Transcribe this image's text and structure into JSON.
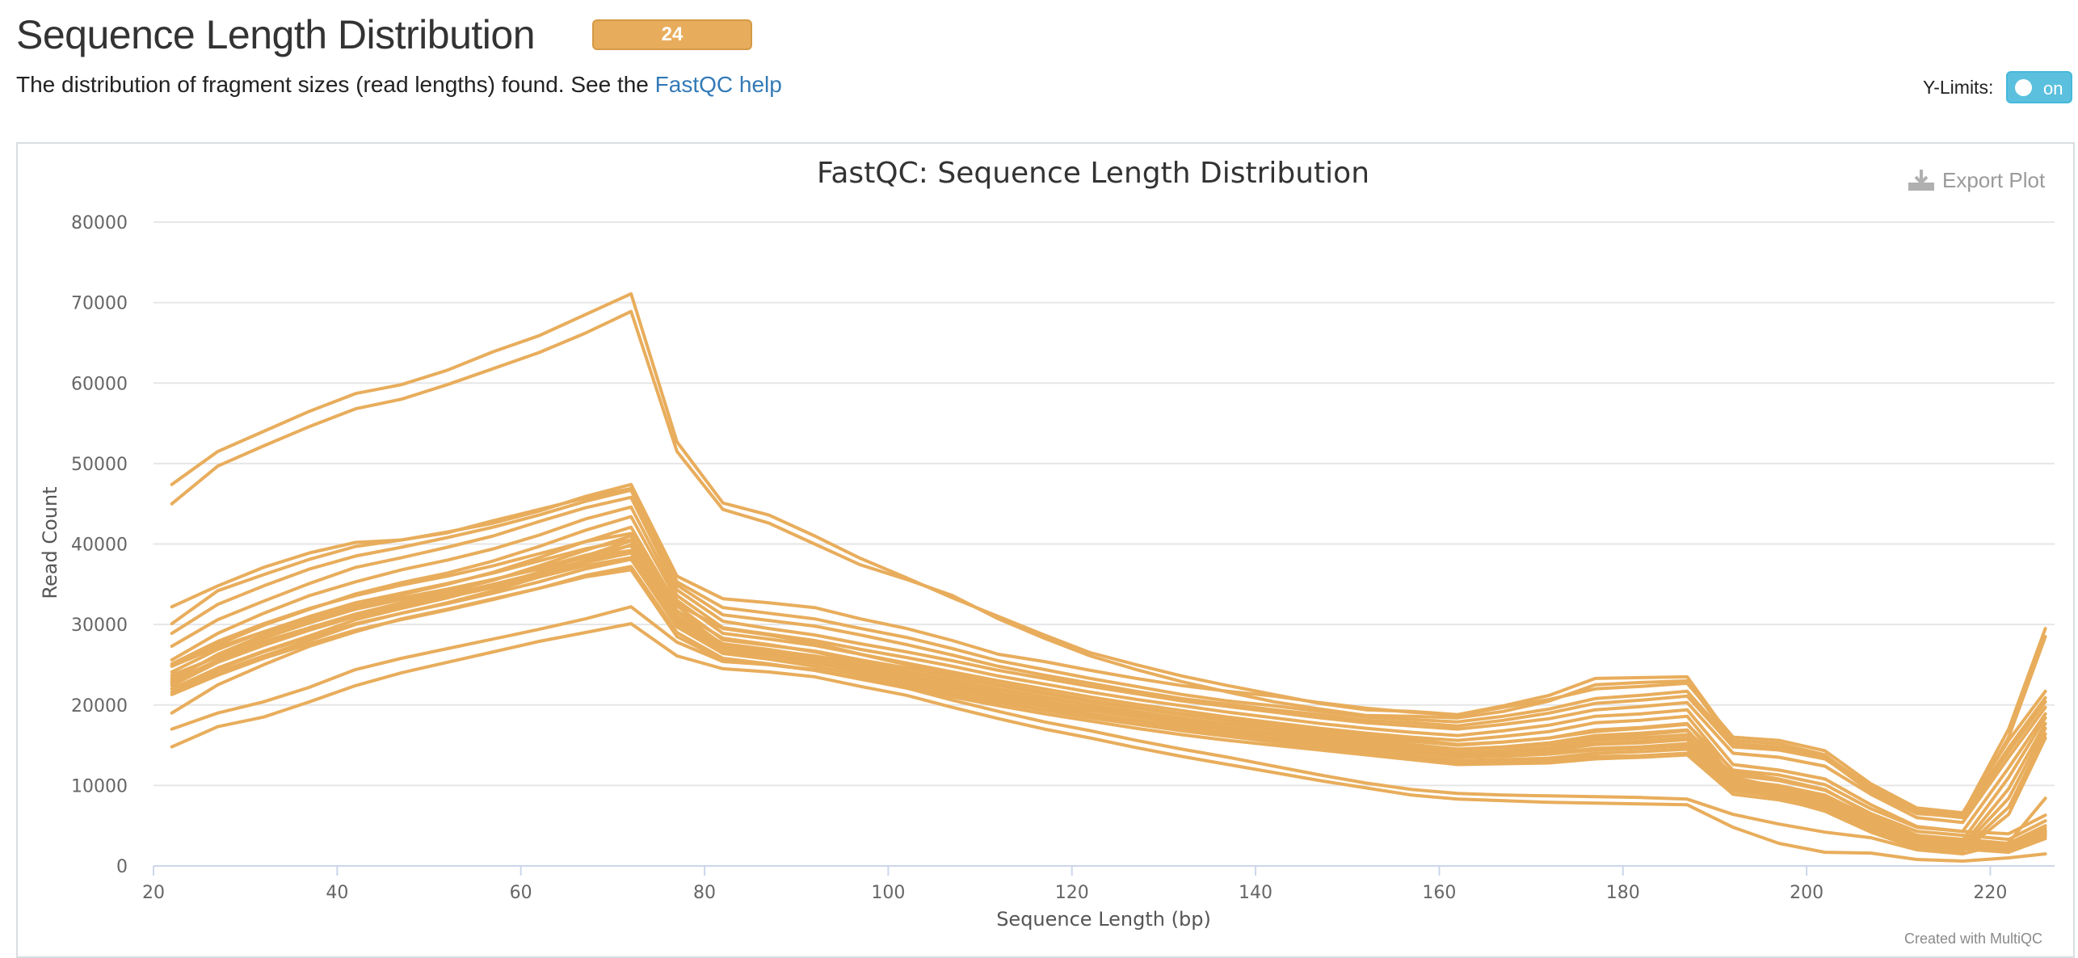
{
  "header": {
    "title": "Sequence Length Distribution",
    "badge": "24",
    "description_prefix": "The distribution of fragment sizes (read lengths) found. See the ",
    "help_link": "FastQC help",
    "ylimits_label": "Y-Limits:",
    "ylimits_toggle": "on"
  },
  "export_label": "Export Plot",
  "credits": "Created with MultiQC",
  "colors": {
    "series": "#e8ad5c",
    "badge": "#e8ad5c",
    "toggle": "#5bc0de",
    "link": "#337ab7"
  },
  "chart_data": {
    "type": "line",
    "title": "FastQC: Sequence Length Distribution",
    "xlabel": "Sequence Length (bp)",
    "ylabel": "Read Count",
    "xlim": [
      20,
      227
    ],
    "ylim": [
      0,
      80000
    ],
    "xticks": [
      20,
      40,
      60,
      80,
      100,
      120,
      140,
      160,
      180,
      200,
      220
    ],
    "yticks": [
      0,
      10000,
      20000,
      30000,
      40000,
      50000,
      60000,
      70000,
      80000
    ],
    "grid": true,
    "legend": "none",
    "x": [
      22,
      27,
      32,
      37,
      42,
      47,
      52,
      57,
      62,
      67,
      72,
      77,
      82,
      87,
      92,
      97,
      102,
      107,
      112,
      117,
      122,
      127,
      132,
      137,
      142,
      147,
      152,
      157,
      162,
      167,
      172,
      177,
      182,
      187,
      192,
      197,
      202,
      207,
      212,
      217,
      222,
      226
    ],
    "series": [
      {
        "values": [
          47400,
          51500,
          54000,
          56500,
          58700,
          59800,
          61600,
          63900,
          65900,
          68500,
          71100,
          52700,
          45100,
          43600,
          41000,
          38200,
          35800,
          33300,
          31000,
          28700,
          26500,
          25000,
          23600,
          22400,
          21300,
          20200,
          19400,
          19200,
          18800,
          19900,
          21200,
          23300,
          23400,
          23500,
          15600,
          15200,
          13800,
          9500,
          6800,
          6400,
          17000,
          29500
        ]
      },
      {
        "values": [
          45000,
          49700,
          52200,
          54600,
          56800,
          58000,
          59800,
          61800,
          63800,
          66200,
          68900,
          51500,
          44300,
          42600,
          40000,
          37400,
          35600,
          33600,
          30700,
          28300,
          26100,
          24400,
          22900,
          21600,
          20400,
          19500,
          18700,
          18600,
          18400,
          19200,
          20500,
          22500,
          22800,
          23000,
          15200,
          14700,
          13400,
          9200,
          6500,
          6100,
          16000,
          28500
        ]
      },
      {
        "values": [
          32200,
          34800,
          37100,
          38900,
          40200,
          40500,
          41500,
          42600,
          44100,
          45900,
          47400,
          36000,
          33200,
          32700,
          32100,
          30700,
          29500,
          28000,
          26300,
          25400,
          24300,
          23300,
          22400,
          21700,
          21100,
          20300,
          19600,
          19100,
          18700,
          19700,
          20700,
          22000,
          22300,
          22700,
          16000,
          15600,
          14300,
          10200,
          7200,
          6600,
          15600,
          21700
        ]
      },
      {
        "values": [
          30100,
          34200,
          36200,
          38100,
          39700,
          40500,
          41400,
          42900,
          44300,
          45700,
          46900,
          35300,
          32100,
          31400,
          30700,
          29500,
          28400,
          27000,
          25500,
          24400,
          23300,
          22300,
          21300,
          20500,
          19900,
          19200,
          18500,
          18200,
          17900,
          18600,
          19500,
          20800,
          21200,
          21700,
          15200,
          14800,
          13700,
          9800,
          6800,
          6200,
          14700,
          20900
        ]
      },
      {
        "values": [
          28900,
          32500,
          34800,
          36900,
          38500,
          39600,
          40800,
          42100,
          43600,
          45300,
          46700,
          34900,
          31200,
          30500,
          29800,
          28700,
          27500,
          26200,
          24800,
          23700,
          22700,
          21700,
          20800,
          20100,
          19400,
          18800,
          18100,
          17800,
          17400,
          18100,
          19000,
          20200,
          20600,
          21100,
          14800,
          14400,
          13300,
          9500,
          6600,
          6000,
          14200,
          20400
        ]
      },
      {
        "values": [
          27300,
          30600,
          32900,
          35100,
          37100,
          38300,
          39600,
          41000,
          42800,
          44500,
          45800,
          34300,
          30400,
          29500,
          28700,
          27600,
          26600,
          25500,
          24300,
          23300,
          22300,
          21400,
          20500,
          19800,
          19100,
          18400,
          17800,
          17400,
          17000,
          17600,
          18300,
          19400,
          19800,
          20300,
          14000,
          13500,
          12400,
          8900,
          6000,
          5400,
          13500,
          19700
        ]
      },
      {
        "values": [
          25600,
          28900,
          31400,
          33600,
          35300,
          36800,
          38000,
          39400,
          41100,
          43100,
          44600,
          33600,
          29600,
          28800,
          28000,
          26900,
          25900,
          24800,
          23600,
          22600,
          21600,
          20700,
          19900,
          19100,
          18400,
          17700,
          17100,
          16600,
          16200,
          16800,
          17500,
          18600,
          18900,
          19400,
          12600,
          11900,
          10800,
          7600,
          4900,
          4300,
          12200,
          18900
        ]
      },
      {
        "values": [
          24900,
          27500,
          29900,
          31900,
          33800,
          35200,
          36400,
          37900,
          39700,
          41700,
          43400,
          33000,
          28900,
          28200,
          27400,
          26300,
          25200,
          24100,
          23000,
          22000,
          21000,
          20100,
          19300,
          18500,
          17800,
          17100,
          16500,
          16000,
          15600,
          16100,
          16700,
          17800,
          18100,
          18600,
          11700,
          10800,
          9500,
          6300,
          3800,
          3200,
          11000,
          18400
        ]
      },
      {
        "values": [
          23100,
          26300,
          28700,
          30600,
          32300,
          33700,
          35000,
          36500,
          38300,
          40300,
          42100,
          32300,
          28100,
          27400,
          26700,
          25600,
          24600,
          23500,
          22400,
          21400,
          20400,
          19600,
          18800,
          18000,
          17300,
          16600,
          16000,
          15500,
          15000,
          15400,
          15900,
          16900,
          17200,
          17700,
          11000,
          9800,
          8400,
          5400,
          3000,
          2600,
          9600,
          17700
        ]
      },
      {
        "values": [
          22400,
          25300,
          27500,
          29400,
          31300,
          32700,
          34000,
          35500,
          37300,
          39200,
          41000,
          31600,
          27500,
          26800,
          26100,
          25100,
          24100,
          23000,
          21900,
          20900,
          20000,
          19200,
          18400,
          17600,
          16900,
          16200,
          15600,
          15000,
          14500,
          14800,
          15300,
          16200,
          16500,
          16900,
          10500,
          9300,
          7700,
          4900,
          2700,
          2300,
          8400,
          17100
        ]
      },
      {
        "values": [
          22000,
          24600,
          26700,
          28600,
          30600,
          32000,
          33300,
          34800,
          36500,
          38500,
          40400,
          31100,
          27100,
          26400,
          25700,
          24700,
          23700,
          22600,
          21500,
          20500,
          19600,
          18800,
          18000,
          17200,
          16500,
          15800,
          15200,
          14600,
          14100,
          14300,
          14700,
          15600,
          15900,
          16300,
          10100,
          8800,
          7200,
          4500,
          2400,
          2000,
          7300,
          16400
        ]
      },
      {
        "values": [
          21600,
          24100,
          26100,
          28000,
          30000,
          31400,
          32700,
          34200,
          35900,
          37900,
          39900,
          30700,
          26800,
          26100,
          25400,
          24400,
          23400,
          22300,
          21200,
          20200,
          19300,
          18500,
          17700,
          16900,
          16200,
          15500,
          14900,
          14300,
          13800,
          13900,
          14300,
          15100,
          15300,
          15700,
          9700,
          8400,
          6800,
          4200,
          2200,
          1800,
          6400,
          15900
        ]
      },
      {
        "values": [
          25100,
          27900,
          30100,
          32000,
          33600,
          34900,
          36000,
          37300,
          38800,
          40300,
          41300,
          32500,
          29500,
          28700,
          27700,
          26300,
          25000,
          23800,
          22600,
          21600,
          20600,
          19700,
          18900,
          18200,
          17600,
          16900,
          16300,
          15700,
          15100,
          15400,
          15900,
          16700,
          17100,
          17600,
          11900,
          11300,
          10100,
          7100,
          4800,
          4300,
          4000,
          6300
        ]
      },
      {
        "values": [
          24100,
          26900,
          29100,
          31000,
          32700,
          33900,
          35100,
          36400,
          37900,
          39400,
          40500,
          31700,
          28300,
          27500,
          26600,
          25300,
          24200,
          23100,
          22000,
          21000,
          20000,
          19100,
          18300,
          17600,
          17000,
          16300,
          15700,
          15100,
          14500,
          14700,
          15100,
          15900,
          16300,
          16800,
          11300,
          10600,
          9400,
          6500,
          4300,
          3800,
          3300,
          5600
        ]
      },
      {
        "values": [
          23400,
          26100,
          28300,
          30200,
          31900,
          33100,
          34300,
          35600,
          37000,
          38600,
          39800,
          31000,
          27600,
          26900,
          26000,
          24800,
          23700,
          22600,
          21500,
          20500,
          19500,
          18600,
          17800,
          17100,
          16500,
          15900,
          15300,
          14700,
          14100,
          14200,
          14500,
          15200,
          15500,
          15900,
          10700,
          10000,
          8800,
          6000,
          3800,
          3300,
          2800,
          5000
        ]
      },
      {
        "values": [
          22700,
          25300,
          27400,
          29300,
          31000,
          32200,
          33400,
          34700,
          36100,
          37700,
          38900,
          30300,
          27000,
          26300,
          25400,
          24200,
          23100,
          22000,
          20900,
          19900,
          18900,
          18100,
          17300,
          16600,
          16000,
          15400,
          14800,
          14200,
          13600,
          13700,
          14000,
          14600,
          14800,
          15200,
          10100,
          9400,
          8200,
          5500,
          3400,
          2900,
          2400,
          4400
        ]
      },
      {
        "values": [
          22000,
          24500,
          26600,
          28400,
          30100,
          31400,
          32600,
          33900,
          35300,
          36900,
          38100,
          29700,
          26400,
          25700,
          24800,
          23700,
          22600,
          21500,
          20400,
          19400,
          18500,
          17600,
          16800,
          16100,
          15500,
          14900,
          14300,
          13700,
          13100,
          13200,
          13400,
          14000,
          14200,
          14500,
          9500,
          8800,
          7600,
          5000,
          3000,
          2500,
          2000,
          3900
        ]
      },
      {
        "values": [
          21300,
          23700,
          25800,
          27600,
          29300,
          30600,
          31800,
          33100,
          34500,
          36100,
          37200,
          29000,
          25800,
          25100,
          24300,
          23200,
          22100,
          21000,
          19900,
          18900,
          18000,
          17100,
          16300,
          15600,
          15000,
          14400,
          13800,
          13200,
          12600,
          12700,
          12800,
          13300,
          13500,
          13800,
          8900,
          8200,
          7000,
          4500,
          2600,
          2100,
          1700,
          3400
        ]
      },
      {
        "values": [
          24800,
          27200,
          29100,
          30700,
          32200,
          33300,
          34400,
          35600,
          36900,
          38300,
          39200,
          30500,
          27400,
          26700,
          25800,
          24600,
          23500,
          22400,
          21300,
          20300,
          19400,
          18500,
          17700,
          16900,
          16200,
          15500,
          14800,
          14200,
          13600,
          13700,
          13900,
          14400,
          14600,
          14900,
          10400,
          9700,
          8500,
          5800,
          3700,
          3200,
          2600,
          4700
        ]
      },
      {
        "values": [
          23700,
          26000,
          27900,
          29600,
          31100,
          32300,
          33400,
          34600,
          35900,
          37300,
          38300,
          29800,
          26800,
          26100,
          25200,
          24100,
          23000,
          21900,
          20800,
          19800,
          18900,
          18000,
          17200,
          16400,
          15700,
          15000,
          14300,
          13700,
          13100,
          13100,
          13200,
          13600,
          13700,
          14000,
          9700,
          9000,
          7800,
          5200,
          3200,
          2700,
          2200,
          4100
        ]
      },
      {
        "values": [
          19000,
          22500,
          25000,
          27300,
          29100,
          30700,
          31900,
          33200,
          34500,
          35900,
          36800,
          28500,
          25600,
          25000,
          24300,
          23300,
          22300,
          21300,
          20300,
          19300,
          18400,
          17600,
          16800,
          16100,
          15400,
          14700,
          14100,
          13500,
          12900,
          12900,
          13000,
          13400,
          13500,
          13800,
          9300,
          8600,
          7400,
          4900,
          3000,
          2500,
          2000,
          3700
        ]
      },
      {
        "values": [
          17000,
          19000,
          20400,
          22200,
          24400,
          25800,
          27000,
          28200,
          29400,
          30700,
          32200,
          27800,
          25400,
          25000,
          24400,
          23300,
          22100,
          20600,
          19200,
          17900,
          16800,
          15600,
          14500,
          13500,
          12400,
          11300,
          10300,
          9500,
          9000,
          8800,
          8700,
          8600,
          8500,
          8300,
          6400,
          5200,
          4200,
          3500,
          2000,
          1500,
          2900,
          8400
        ]
      },
      {
        "values": [
          14800,
          17300,
          18500,
          20400,
          22400,
          24000,
          25300,
          26600,
          27900,
          29000,
          30100,
          26100,
          24500,
          24100,
          23500,
          22300,
          21200,
          19700,
          18300,
          17000,
          15900,
          14700,
          13600,
          12600,
          11600,
          10600,
          9700,
          8800,
          8300,
          8100,
          7900,
          7800,
          7700,
          7600,
          4800,
          2800,
          1700,
          1600,
          800,
          600,
          1000,
          1500
        ]
      },
      {
        "values": [
          22900,
          25600,
          27700,
          29600,
          31300,
          32500,
          33700,
          35000,
          36400,
          37900,
          39000,
          30200,
          26900,
          26200,
          25300,
          24100,
          23000,
          21900,
          20800,
          19800,
          18800,
          18000,
          17200,
          16500,
          15900,
          15300,
          14700,
          14100,
          13500,
          13600,
          13900,
          14500,
          14700,
          15000,
          10000,
          9300,
          8100,
          5400,
          3300,
          2800,
          2300,
          4300
        ]
      }
    ]
  }
}
